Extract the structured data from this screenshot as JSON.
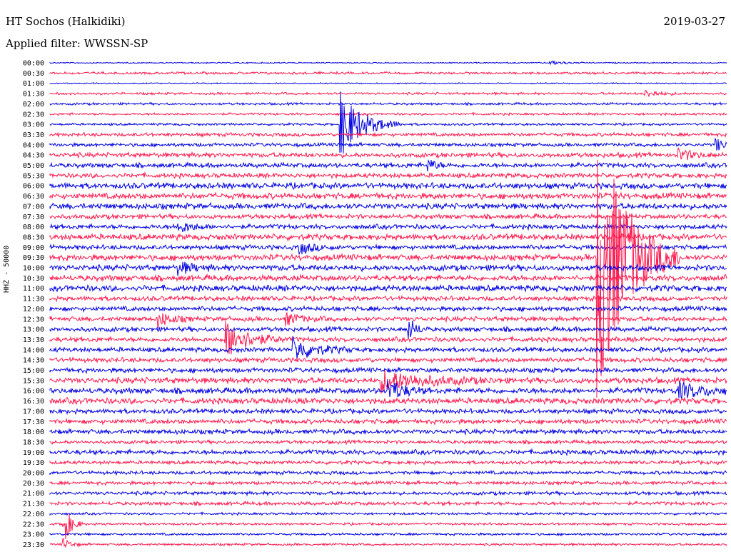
{
  "header": {
    "station": "HT Sochos (Halkidiki)",
    "date": "2019-03-27",
    "filter_label": "Applied filter: WWSSN-SP"
  },
  "axis": {
    "vertical_label": "HHZ - 50000"
  },
  "colors": {
    "trace_a": "#0000e0",
    "trace_b": "#ff1a4f",
    "background": "#ffffff"
  },
  "chart_data": {
    "type": "line",
    "title": "HT Sochos (Halkidiki)",
    "subtitle": "Applied filter: WWSSN-SP",
    "ylabel": "HHZ - 50000",
    "xlabel": "",
    "grid": false,
    "legend": "none",
    "series_colors_alternate": [
      "#0000e0",
      "#ff1a4f"
    ],
    "row_labels": [
      "00:00",
      "00:30",
      "01:00",
      "01:30",
      "02:00",
      "02:30",
      "03:00",
      "03:30",
      "04:00",
      "04:30",
      "05:00",
      "05:30",
      "06:00",
      "06:30",
      "07:00",
      "07:30",
      "08:00",
      "08:30",
      "09:00",
      "09:30",
      "10:00",
      "10:30",
      "11:00",
      "11:30",
      "12:00",
      "12:30",
      "13:00",
      "13:30",
      "14:00",
      "14:30",
      "15:00",
      "15:30",
      "16:00",
      "16:30",
      "17:00",
      "17:30",
      "18:00",
      "18:30",
      "19:00",
      "19:30",
      "20:00",
      "20:30",
      "21:00",
      "21:30",
      "22:00",
      "22:30",
      "23:00",
      "23:30"
    ],
    "row_noise": [
      1,
      2,
      1,
      2,
      2,
      2,
      2,
      3,
      3,
      4,
      4,
      4,
      5,
      5,
      5,
      4,
      4,
      5,
      4,
      5,
      5,
      5,
      5,
      4,
      4,
      4,
      4,
      4,
      4,
      4,
      4,
      5,
      5,
      5,
      4,
      4,
      4,
      3,
      4,
      3,
      3,
      3,
      3,
      3,
      2,
      2,
      2,
      2
    ],
    "events": [
      {
        "row": 0,
        "t": 0.74,
        "amp": 3,
        "dur": 0.02
      },
      {
        "row": 3,
        "t": 0.88,
        "amp": 5,
        "dur": 0.02
      },
      {
        "row": 6,
        "t": 0.43,
        "amp": 45,
        "dur": 0.03
      },
      {
        "row": 8,
        "t": 0.985,
        "amp": 9,
        "dur": 0.01
      },
      {
        "row": 9,
        "t": 0.93,
        "amp": 8,
        "dur": 0.02
      },
      {
        "row": 10,
        "t": 0.56,
        "amp": 9,
        "dur": 0.01
      },
      {
        "row": 16,
        "t": 0.19,
        "amp": 8,
        "dur": 0.02
      },
      {
        "row": 18,
        "t": 0.37,
        "amp": 8,
        "dur": 0.02
      },
      {
        "row": 19,
        "t": 0.81,
        "amp": 200,
        "dur": 0.04
      },
      {
        "row": 20,
        "t": 0.19,
        "amp": 8,
        "dur": 0.02
      },
      {
        "row": 25,
        "t": 0.16,
        "amp": 10,
        "dur": 0.02
      },
      {
        "row": 25,
        "t": 0.35,
        "amp": 8,
        "dur": 0.02
      },
      {
        "row": 26,
        "t": 0.53,
        "amp": 16,
        "dur": 0.01
      },
      {
        "row": 27,
        "t": 0.26,
        "amp": 26,
        "dur": 0.03
      },
      {
        "row": 28,
        "t": 0.36,
        "amp": 16,
        "dur": 0.03
      },
      {
        "row": 31,
        "t": 0.49,
        "amp": 14,
        "dur": 0.06
      },
      {
        "row": 32,
        "t": 0.5,
        "amp": 16,
        "dur": 0.02
      },
      {
        "row": 32,
        "t": 0.93,
        "amp": 10,
        "dur": 0.04
      },
      {
        "row": 45,
        "t": 0.02,
        "amp": 30,
        "dur": 0.01
      },
      {
        "row": 47,
        "t": 0.02,
        "amp": 8,
        "dur": 0.01
      }
    ]
  }
}
